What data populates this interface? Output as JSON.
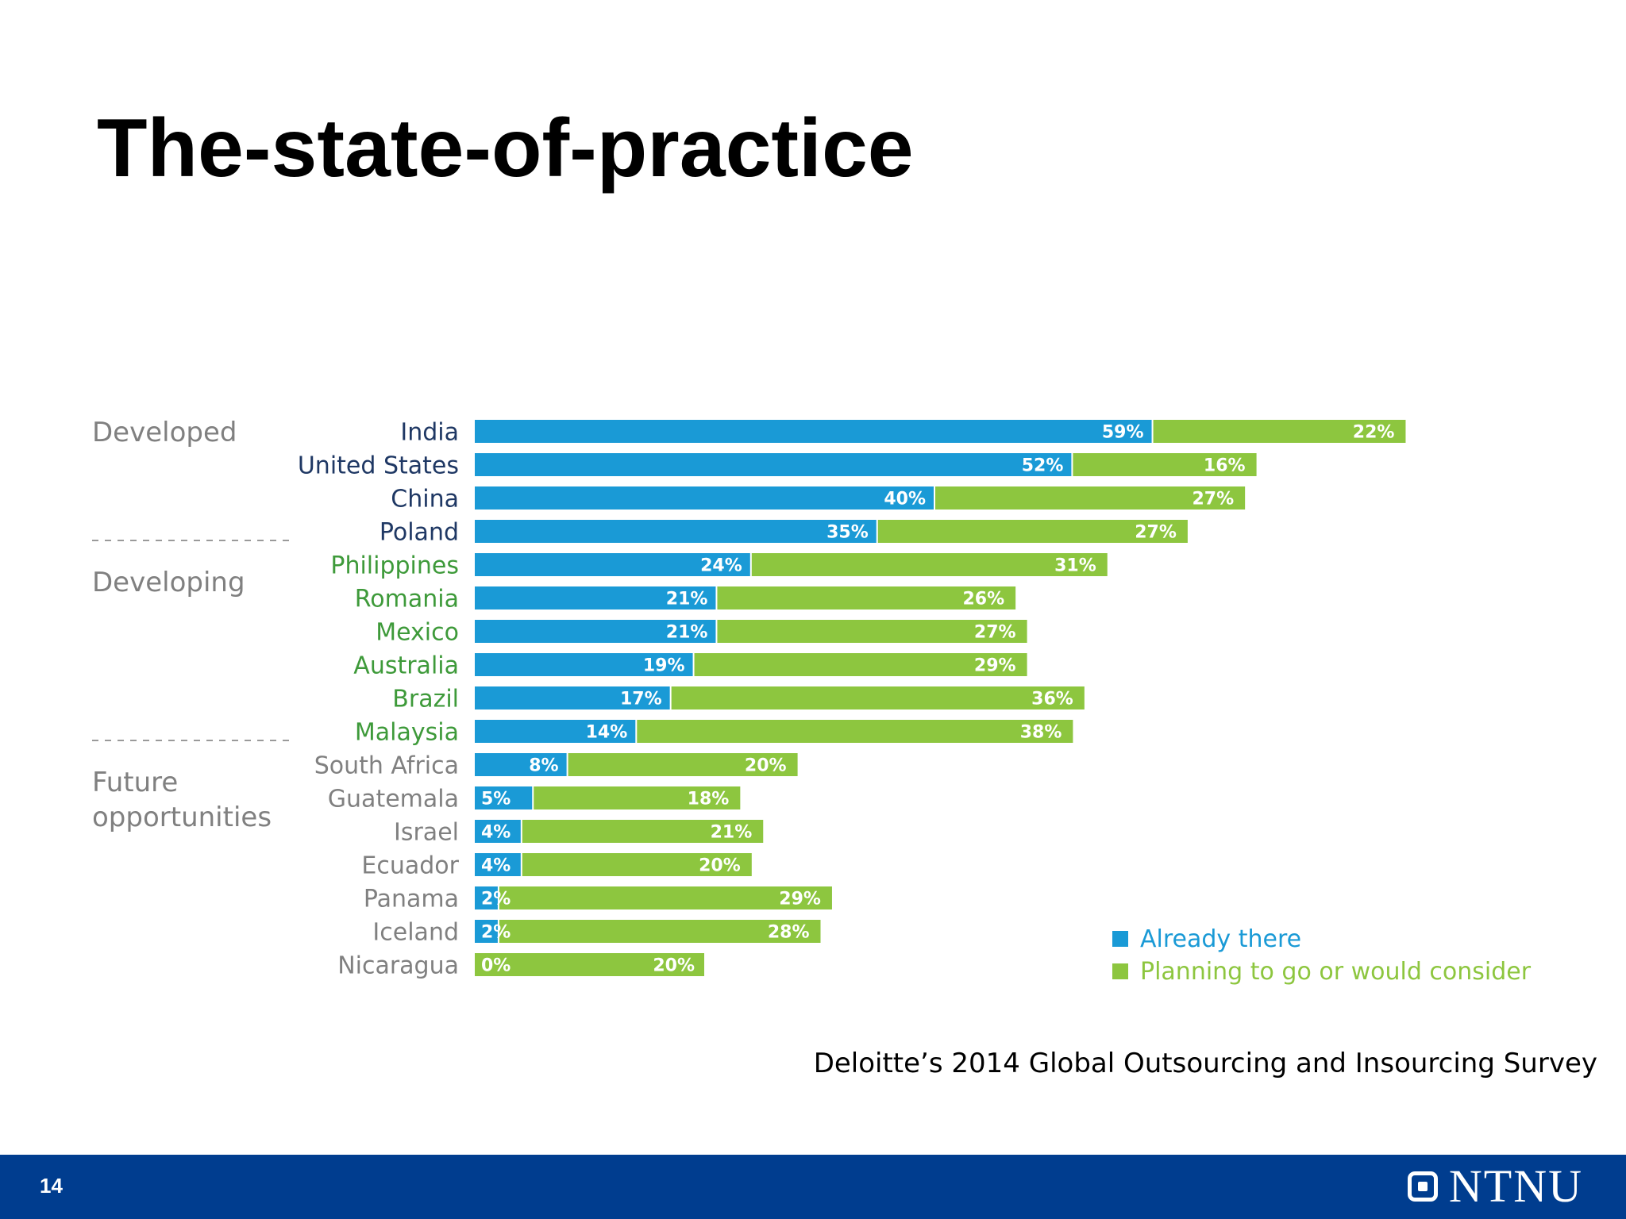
{
  "slide": {
    "title": "The-state-of-practice",
    "source": "Deloitte’s 2014 Global Outsourcing and Insourcing Survey",
    "number": "14",
    "logo_text": "NTNU",
    "footer_color": "#003d8f"
  },
  "colors": {
    "already": "#1a9ad6",
    "planning": "#8dc63f",
    "developed_label": "#1f3864",
    "developing_label": "#3e9a3a",
    "future_label": "#808080",
    "group_label": "#808080"
  },
  "chart_data": {
    "type": "bar",
    "orientation": "horizontal",
    "stacked": true,
    "title": "",
    "xlabel": "",
    "ylabel": "",
    "groups": [
      {
        "name": "Developed",
        "categories": [
          "India",
          "United States",
          "China",
          "Poland"
        ]
      },
      {
        "name": "Developing",
        "categories": [
          "Philippines",
          "Romania",
          "Mexico",
          "Australia",
          "Brazil",
          "Malaysia"
        ]
      },
      {
        "name": "Future opportunities",
        "categories": [
          "South Africa",
          "Guatemala",
          "Israel",
          "Ecuador",
          "Panama",
          "Iceland",
          "Nicaragua"
        ]
      }
    ],
    "categories": [
      "India",
      "United States",
      "China",
      "Poland",
      "Philippines",
      "Romania",
      "Mexico",
      "Australia",
      "Brazil",
      "Malaysia",
      "South Africa",
      "Guatemala",
      "Israel",
      "Ecuador",
      "Panama",
      "Iceland",
      "Nicaragua"
    ],
    "series": [
      {
        "name": "Already there",
        "values": [
          59,
          52,
          40,
          35,
          24,
          21,
          21,
          19,
          17,
          14,
          8,
          5,
          4,
          4,
          2,
          2,
          0
        ]
      },
      {
        "name": "Planning to go or would consider",
        "values": [
          22,
          16,
          27,
          27,
          31,
          26,
          27,
          29,
          36,
          38,
          20,
          18,
          21,
          20,
          29,
          28,
          20
        ]
      }
    ],
    "data_labels": [
      [
        "59%",
        "52%",
        "40%",
        "35%",
        "24%",
        "21%",
        "21%",
        "19%",
        "17%",
        "14%",
        "8%",
        "5%",
        "4%",
        "4%",
        "2%",
        "2%",
        "0%"
      ],
      [
        "22%",
        "16%",
        "27%",
        "27%",
        "31%",
        "26%",
        "27%",
        "29%",
        "36%",
        "38%",
        "20%",
        "18%",
        "21%",
        "20%",
        "29%",
        "28%",
        "20%"
      ]
    ],
    "legend_position": "bottom-right",
    "grid": false
  }
}
